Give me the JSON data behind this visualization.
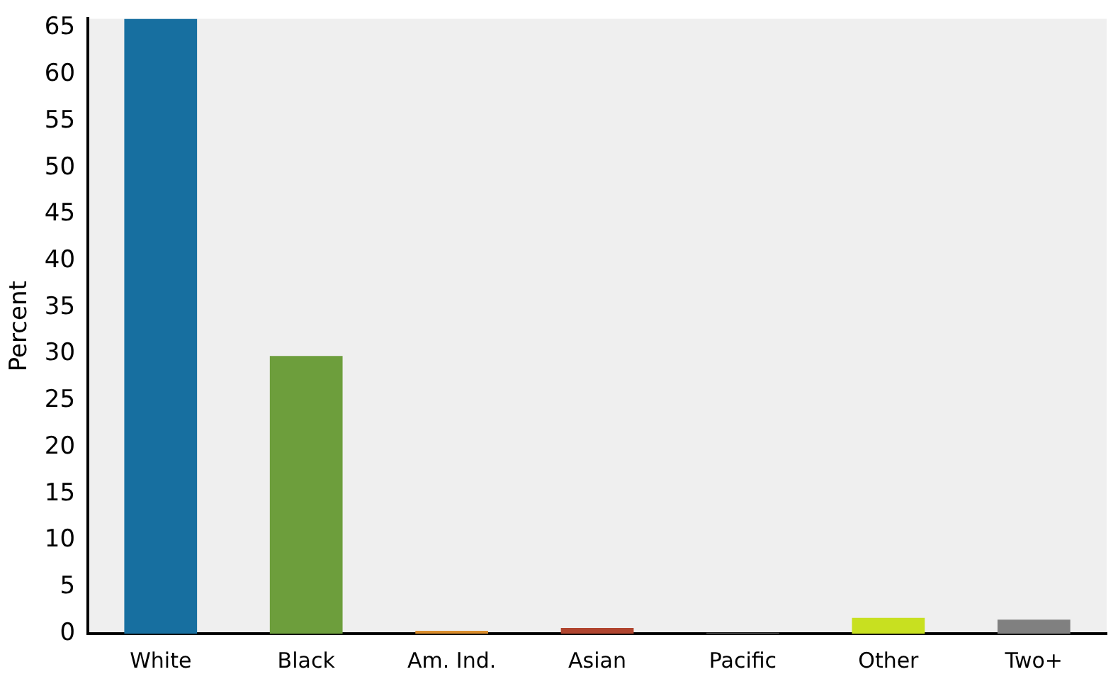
{
  "chart_data": {
    "type": "bar",
    "ylabel": "Percent",
    "categories": [
      "White",
      "Black",
      "Am. Ind.",
      "Asian",
      "Pacific",
      "Other",
      "Two+"
    ],
    "values": [
      66,
      29.8,
      0.3,
      0.6,
      0.1,
      1.7,
      1.5
    ],
    "colors": [
      "#176fa0",
      "#6d9e3c",
      "#d98c2b",
      "#b0452f",
      "#555555",
      "#c8e020",
      "#808080"
    ],
    "ylim": [
      0,
      66
    ],
    "yticks": [
      0,
      5,
      10,
      15,
      20,
      25,
      30,
      35,
      40,
      45,
      50,
      55,
      60,
      65
    ],
    "grid": false,
    "legend": false
  }
}
